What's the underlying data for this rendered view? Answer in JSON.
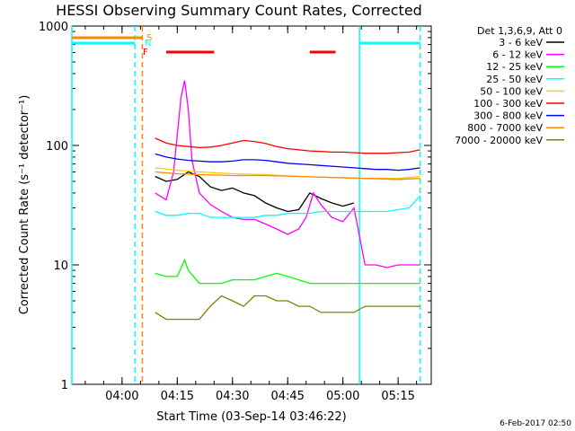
{
  "chart_data": {
    "type": "line",
    "title": "HESSI Observing Summary Count Rates, Corrected",
    "xlabel": "Start Time (03-Sep-14 03:46:22)",
    "ylabel": "Corrected Count Rate (s⁻¹ detector⁻¹)",
    "yscale": "log",
    "ylim": [
      1,
      1000
    ],
    "yticks": [
      {
        "v": 1,
        "label": "1"
      },
      {
        "v": 10,
        "label": "10"
      },
      {
        "v": 100,
        "label": "100"
      },
      {
        "v": 1000,
        "label": "1000"
      }
    ],
    "xlim": [
      "03:46:22",
      "05:24:00"
    ],
    "xticks": [
      "04:00",
      "04:15",
      "04:30",
      "04:45",
      "05:00",
      "05:15"
    ],
    "grid": false,
    "legend_placement": "right",
    "legend_title": "Det 1,3,6,9, Att 0",
    "timestamp": "6-Feb-2017 02:50",
    "series": [
      {
        "name": "3 - 6 keV",
        "color": "#000000",
        "x": [
          "04:09",
          "04:12",
          "04:15",
          "04:18",
          "04:21",
          "04:24",
          "04:27",
          "04:30",
          "04:33",
          "04:36",
          "04:39",
          "04:42",
          "04:45",
          "04:48",
          "04:51",
          "04:54",
          "04:57",
          "05:00",
          "05:03"
        ],
        "values": [
          55,
          50,
          52,
          60,
          55,
          45,
          42,
          44,
          40,
          38,
          33,
          30,
          28,
          29,
          40,
          36,
          33,
          31,
          33
        ]
      },
      {
        "name": "6 - 12 keV",
        "color": "#ff00ff",
        "x": [
          "04:09",
          "04:12",
          "04:14",
          "04:16",
          "04:17",
          "04:18",
          "04:19",
          "04:21",
          "04:24",
          "04:27",
          "04:30",
          "04:33",
          "04:36",
          "04:39",
          "04:42",
          "04:45",
          "04:48",
          "04:50",
          "04:52",
          "04:54",
          "04:57",
          "05:00",
          "05:03",
          "05:06",
          "05:09",
          "05:12",
          "05:15",
          "05:18",
          "05:21"
        ],
        "values": [
          40,
          35,
          60,
          250,
          350,
          200,
          75,
          40,
          32,
          28,
          25,
          24,
          24,
          22,
          20,
          18,
          20,
          25,
          40,
          32,
          25,
          23,
          30,
          10,
          10,
          9.5,
          10,
          10,
          10
        ]
      },
      {
        "name": "12 - 25 keV",
        "color": "#00ff00",
        "x": [
          "04:09",
          "04:12",
          "04:15",
          "04:17",
          "04:18",
          "04:21",
          "04:24",
          "04:27",
          "04:30",
          "04:33",
          "04:36",
          "04:39",
          "04:42",
          "04:45",
          "04:48",
          "04:51",
          "04:54",
          "04:57",
          "05:00",
          "05:03",
          "05:06",
          "05:09",
          "05:12",
          "05:15",
          "05:18",
          "05:21"
        ],
        "values": [
          8.5,
          8,
          8,
          11,
          9,
          7,
          7,
          7,
          7.5,
          7.5,
          7.5,
          8,
          8.5,
          8,
          7.5,
          7,
          7,
          7,
          7,
          7,
          7,
          7,
          7,
          7,
          7,
          7
        ]
      },
      {
        "name": "25 - 50 keV",
        "color": "#00ffff",
        "x": [
          "04:09",
          "04:12",
          "04:15",
          "04:18",
          "04:21",
          "04:24",
          "04:27",
          "04:30",
          "04:33",
          "04:36",
          "04:39",
          "04:42",
          "04:45",
          "04:48",
          "04:51",
          "04:54",
          "04:57",
          "05:00",
          "05:03",
          "05:06",
          "05:09",
          "05:12",
          "05:15",
          "05:18",
          "05:21"
        ],
        "values": [
          28,
          26,
          26,
          27,
          27,
          25,
          25,
          25,
          25,
          25,
          26,
          26,
          27,
          27,
          27,
          28,
          28,
          28,
          28,
          28,
          28,
          28,
          29,
          30,
          38
        ]
      },
      {
        "name": "50 - 100 keV",
        "color": "#ffcc00",
        "x": [
          "04:09",
          "04:15",
          "04:21",
          "04:30",
          "04:39",
          "04:48",
          "04:57",
          "05:06",
          "05:15",
          "05:21"
        ],
        "values": [
          65,
          62,
          60,
          58,
          57,
          55,
          54,
          53,
          53,
          55
        ]
      },
      {
        "name": "100 - 300 keV",
        "color": "#ff0000",
        "x": [
          "04:09",
          "04:12",
          "04:15",
          "04:18",
          "04:21",
          "04:24",
          "04:27",
          "04:30",
          "04:33",
          "04:36",
          "04:39",
          "04:42",
          "04:45",
          "04:48",
          "04:51",
          "04:54",
          "04:57",
          "05:00",
          "05:03",
          "05:06",
          "05:09",
          "05:12",
          "05:15",
          "05:18",
          "05:21"
        ],
        "values": [
          115,
          105,
          100,
          98,
          96,
          97,
          100,
          105,
          110,
          108,
          104,
          98,
          94,
          92,
          90,
          89,
          88,
          88,
          87,
          86,
          86,
          86,
          87,
          88,
          92
        ]
      },
      {
        "name": "300 - 800 keV",
        "color": "#0000ff",
        "x": [
          "04:09",
          "04:12",
          "04:15",
          "04:18",
          "04:21",
          "04:24",
          "04:27",
          "04:30",
          "04:33",
          "04:36",
          "04:39",
          "04:42",
          "04:45",
          "04:48",
          "04:51",
          "04:54",
          "04:57",
          "05:00",
          "05:03",
          "05:06",
          "05:09",
          "05:12",
          "05:15",
          "05:18",
          "05:21"
        ],
        "values": [
          85,
          80,
          77,
          75,
          74,
          73,
          73,
          74,
          76,
          76,
          75,
          73,
          71,
          70,
          69,
          68,
          67,
          66,
          65,
          64,
          63,
          63,
          62,
          63,
          65
        ]
      },
      {
        "name": "800 - 7000 keV",
        "color": "#ff8800",
        "x": [
          "04:09",
          "04:15",
          "04:21",
          "04:30",
          "04:39",
          "04:48",
          "04:57",
          "05:06",
          "05:15",
          "05:21"
        ],
        "values": [
          60,
          58,
          57,
          56,
          56,
          55,
          54,
          53,
          52,
          53
        ]
      },
      {
        "name": "7000 - 20000 keV",
        "color": "#808000",
        "x": [
          "04:09",
          "04:12",
          "04:15",
          "04:18",
          "04:21",
          "04:24",
          "04:27",
          "04:30",
          "04:33",
          "04:36",
          "04:39",
          "04:42",
          "04:45",
          "04:48",
          "04:51",
          "04:54",
          "04:57",
          "05:00",
          "05:03",
          "05:06",
          "05:09",
          "05:12",
          "05:15",
          "05:18",
          "05:21"
        ],
        "values": [
          4,
          3.5,
          3.5,
          3.5,
          3.5,
          4.5,
          5.5,
          5,
          4.5,
          5.5,
          5.5,
          5,
          5,
          4.5,
          4.5,
          4,
          4,
          4,
          4,
          4.5,
          4.5,
          4.5,
          4.5,
          4.5,
          4.5
        ]
      }
    ],
    "flags": [
      {
        "label": "S",
        "color": "#ff8800",
        "segments": [
          [
            "03:46:22",
            "04:05:30"
          ]
        ]
      },
      {
        "label": "N",
        "color": "#00ffff",
        "segments": [
          [
            "03:46:22",
            "04:03:30"
          ],
          [
            "05:04:30",
            "05:21:00"
          ]
        ]
      },
      {
        "label": "F",
        "color": "#ff0000",
        "segments": [
          [
            "04:12:00",
            "04:25:00"
          ],
          [
            "04:51:00",
            "04:58:00"
          ]
        ]
      }
    ],
    "vlines": [
      {
        "x": "03:46:22",
        "color": "#00ffff",
        "style": "solid"
      },
      {
        "x": "04:03:30",
        "color": "#00ffff",
        "style": "dashed"
      },
      {
        "x": "04:05:30",
        "color": "#ff8800",
        "style": "dashed"
      },
      {
        "x": "05:04:30",
        "color": "#00ffff",
        "style": "solid"
      },
      {
        "x": "05:21:00",
        "color": "#00ffff",
        "style": "dashed"
      }
    ]
  }
}
